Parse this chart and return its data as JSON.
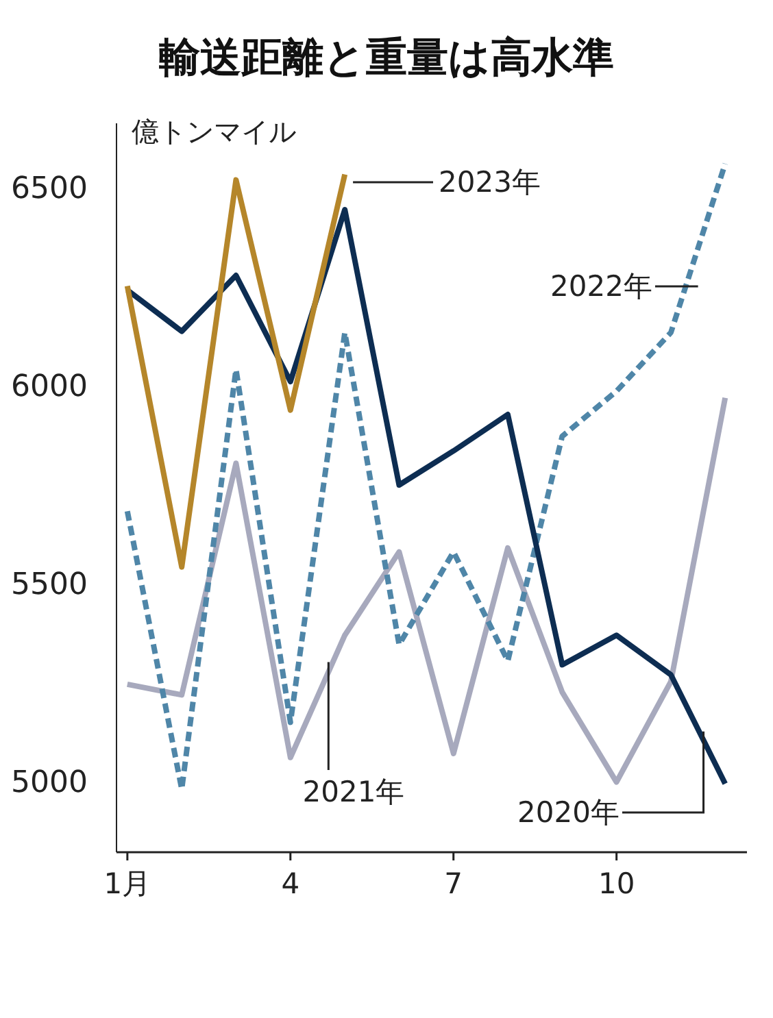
{
  "chart_data": {
    "type": "line",
    "title": "輸送距離と重量は高水準",
    "ylabel": "億トンマイル",
    "x": [
      1,
      2,
      3,
      4,
      5,
      6,
      7,
      8,
      9,
      10,
      11,
      12
    ],
    "xlim": [
      0.8,
      12.4
    ],
    "xticks": [
      {
        "value": 1,
        "label": "1月"
      },
      4,
      7,
      10
    ],
    "ylim": [
      4820,
      6660
    ],
    "yticks": [
      5000,
      5500,
      6000,
      6500
    ],
    "grid": false,
    "legend": false,
    "marker": "none",
    "series": [
      {
        "name": "2021年",
        "color": "#a7a9bd",
        "line_style": "solid",
        "values": [
          5244,
          5217,
          5802,
          5059,
          5368,
          5578,
          5069,
          5588,
          5224,
          4997,
          5251,
          5967
        ]
      },
      {
        "name": "2022年",
        "color": "#4f86a8",
        "line_style": "dashed",
        "values": [
          5681,
          4979,
          6039,
          5148,
          6132,
          5344,
          5578,
          5303,
          5870,
          5984,
          6132,
          6558
        ]
      },
      {
        "name": "2020年",
        "color": "#0d2d52",
        "line_style": "solid",
        "values": [
          6239,
          6135,
          6276,
          6008,
          6442,
          5747,
          5833,
          5925,
          5293,
          5368,
          5268,
          4993
        ]
      },
      {
        "name": "2023年",
        "color": "#b5862a",
        "line_style": "solid",
        "x": [
          1,
          2,
          3,
          4,
          5
        ],
        "values": [
          6249,
          5540,
          6517,
          5936,
          6531
        ]
      }
    ]
  }
}
